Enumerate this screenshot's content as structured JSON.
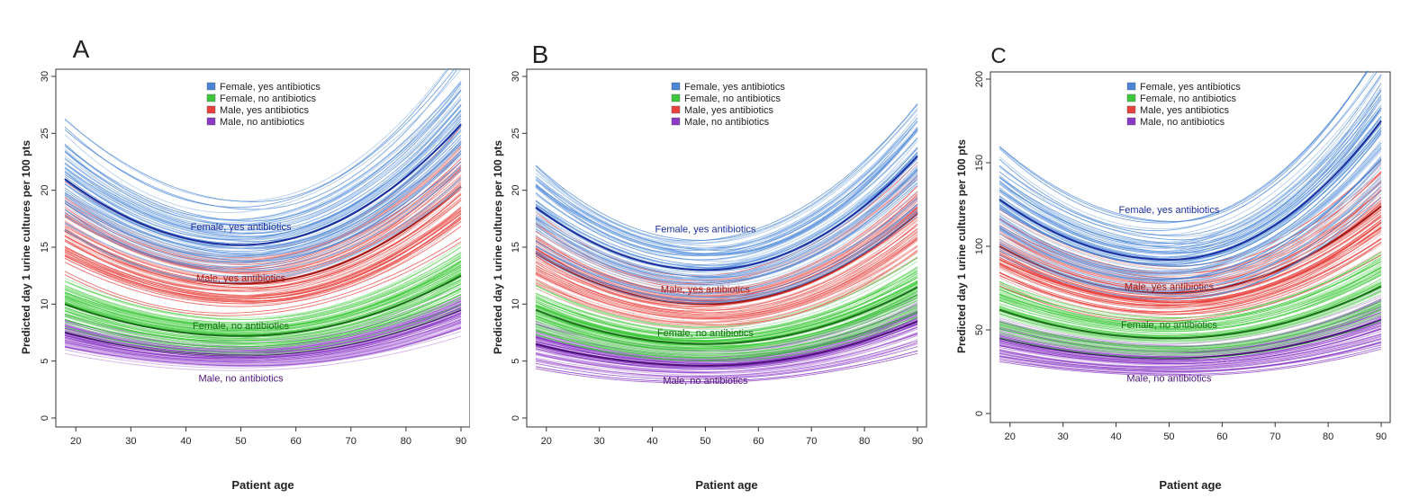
{
  "figure": {
    "colors": {
      "fem_yes": "#4a86d8",
      "fem_yes_light": "#9fc0ea",
      "fem_no": "#3cc83a",
      "fem_no_light": "#9be497",
      "male_yes": "#e8403c",
      "male_yes_light": "#f29e9a",
      "male_no": "#8a39c4",
      "male_no_light": "#c79ae6",
      "fem_yes_mean": "#1c2f9e",
      "fem_no_mean": "#1b6e1a",
      "male_yes_mean": "#a01a18",
      "male_no_mean": "#4e127a"
    }
  },
  "chart_data": [
    {
      "panel": "A",
      "type": "line",
      "xlabel": "Patient age",
      "ylabel": "Predicted day 1 urine cultures per 100 pts",
      "xlim": [
        18,
        90
      ],
      "ylim": [
        0,
        30
      ],
      "xticks": [
        "20",
        "30",
        "40",
        "50",
        "60",
        "70",
        "80",
        "90"
      ],
      "yticks": [
        "0",
        "5",
        "10",
        "15",
        "20",
        "25",
        "30"
      ],
      "legend": [
        "Female, yes antibiotics",
        "Female, no antibiotics",
        "Male, yes antibiotics",
        "Male, no antibiotics"
      ],
      "series": [
        {
          "name": "Female, yes antibiotics",
          "label": "Female, yes antibiotics",
          "label_x": 50,
          "label_y": 16.5,
          "mean": {
            "y_start": 21.0,
            "y_min": 15.2,
            "x_min": 50,
            "y_end": 25.8
          },
          "spread": 4.2
        },
        {
          "name": "Male, yes antibiotics",
          "label": "Male, yes antibiotics",
          "label_x": 50,
          "label_y": 12.0,
          "mean": {
            "y_start": 16.5,
            "y_min": 11.8,
            "x_min": 50,
            "y_end": 20.3
          },
          "spread": 3.2
        },
        {
          "name": "Female, no antibiotics",
          "label": "Female, no antibiotics",
          "label_x": 50,
          "label_y": 7.8,
          "mean": {
            "y_start": 10.0,
            "y_min": 7.2,
            "x_min": 50,
            "y_end": 12.5
          },
          "spread": 2.0
        },
        {
          "name": "Male, no antibiotics",
          "label": "Male, no antibiotics",
          "label_x": 50,
          "label_y": 3.2,
          "mean": {
            "y_start": 7.5,
            "y_min": 5.5,
            "x_min": 50,
            "y_end": 9.5
          },
          "spread": 1.8
        }
      ]
    },
    {
      "panel": "B",
      "type": "line",
      "xlabel": "Patient age",
      "ylabel": "Predicted day 1 urine cultures per 100 pts",
      "xlim": [
        18,
        90
      ],
      "ylim": [
        0,
        30
      ],
      "xticks": [
        "20",
        "30",
        "40",
        "50",
        "60",
        "70",
        "80",
        "90"
      ],
      "yticks": [
        "0",
        "5",
        "10",
        "15",
        "20",
        "25",
        "30"
      ],
      "legend": [
        "Female, yes antibiotics",
        "Female, no antibiotics",
        "Male, yes antibiotics",
        "Male, no antibiotics"
      ],
      "series": [
        {
          "name": "Female, yes antibiotics",
          "label": "Female, yes antibiotics",
          "label_x": 50,
          "label_y": 16.3,
          "mean": {
            "y_start": 18.5,
            "y_min": 13.0,
            "x_min": 50,
            "y_end": 23.0
          },
          "spread": 4.0
        },
        {
          "name": "Male, yes antibiotics",
          "label": "Male, yes antibiotics",
          "label_x": 50,
          "label_y": 11.0,
          "mean": {
            "y_start": 14.5,
            "y_min": 10.0,
            "x_min": 50,
            "y_end": 18.0
          },
          "spread": 3.0
        },
        {
          "name": "Female, no antibiotics",
          "label": "Female, no antibiotics",
          "label_x": 50,
          "label_y": 7.2,
          "mean": {
            "y_start": 9.5,
            "y_min": 6.5,
            "x_min": 50,
            "y_end": 11.5
          },
          "spread": 2.0
        },
        {
          "name": "Male, no antibiotics",
          "label": "Male, no antibiotics",
          "label_x": 50,
          "label_y": 3.0,
          "mean": {
            "y_start": 6.5,
            "y_min": 4.6,
            "x_min": 50,
            "y_end": 8.5
          },
          "spread": 1.8
        }
      ]
    },
    {
      "panel": "C",
      "type": "line",
      "xlabel": "Patient age",
      "ylabel": "Predicted day 1 urine cultures per 100 pts",
      "xlim": [
        18,
        90
      ],
      "ylim": [
        0,
        200
      ],
      "xticks": [
        "20",
        "30",
        "40",
        "50",
        "60",
        "70",
        "80",
        "90"
      ],
      "yticks": [
        "0",
        "50",
        "100",
        "150",
        "200"
      ],
      "legend": [
        "Female, yes antibiotics",
        "Female, no antibiotics",
        "Male, yes antibiotics",
        "Male, no antibiotics"
      ],
      "series": [
        {
          "name": "Female, yes antibiotics",
          "label": "Female, yes antibiotics",
          "label_x": 50,
          "label_y": 120,
          "mean": {
            "y_start": 128,
            "y_min": 92,
            "x_min": 50,
            "y_end": 175
          },
          "spread": 28
        },
        {
          "name": "Male, yes antibiotics",
          "label": "Male, yes antibiotics",
          "label_x": 50,
          "label_y": 74,
          "mean": {
            "y_start": 100,
            "y_min": 72,
            "x_min": 50,
            "y_end": 124
          },
          "spread": 20
        },
        {
          "name": "Female, no antibiotics",
          "label": "Female, no antibiotics",
          "label_x": 50,
          "label_y": 51,
          "mean": {
            "y_start": 62,
            "y_min": 45,
            "x_min": 50,
            "y_end": 76
          },
          "spread": 14
        },
        {
          "name": "Male, no antibiotics",
          "label": "Male, no antibiotics",
          "label_x": 50,
          "label_y": 19,
          "mean": {
            "y_start": 45,
            "y_min": 33,
            "x_min": 50,
            "y_end": 56
          },
          "spread": 12
        }
      ]
    }
  ]
}
